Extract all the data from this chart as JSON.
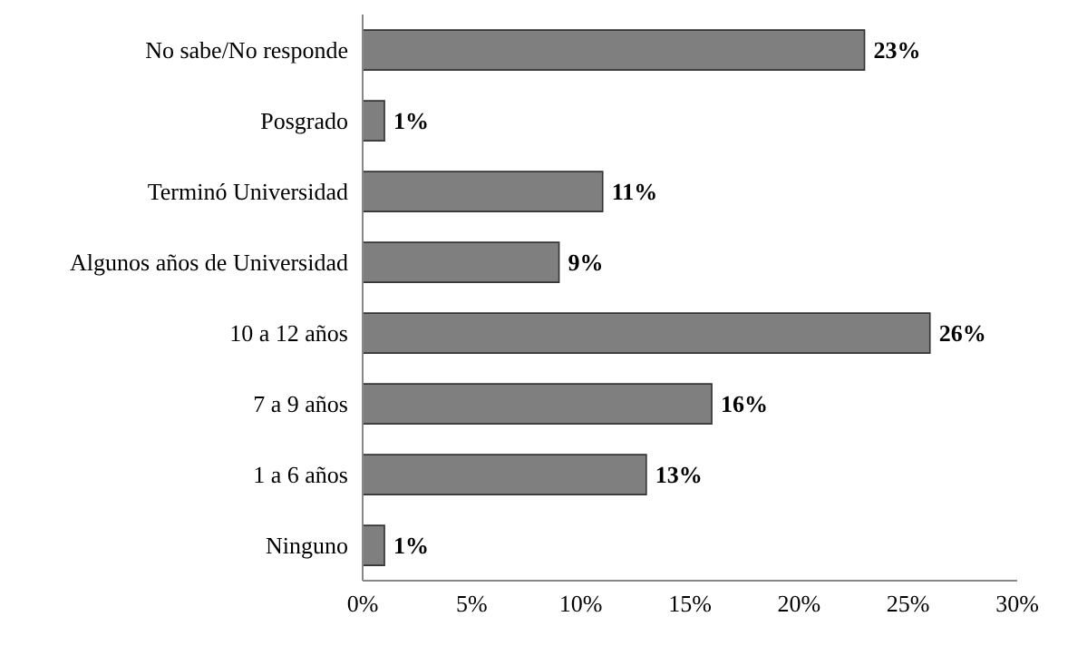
{
  "chart_data": {
    "type": "bar",
    "orientation": "horizontal",
    "categories": [
      "No sabe/No responde",
      "Posgrado",
      "Terminó Universidad",
      "Algunos años de Universidad",
      "10 a 12 años",
      "7 a 9 años",
      "1 a 6 años",
      "Ninguno"
    ],
    "values": [
      23,
      1,
      11,
      9,
      26,
      16,
      13,
      1
    ],
    "value_labels": [
      "23%",
      "1%",
      "11%",
      "9%",
      "26%",
      "16%",
      "13%",
      "1%"
    ],
    "color": "#7f7f7f",
    "xlim": [
      0,
      30
    ],
    "xticks": [
      {
        "value": 0,
        "label": "0%"
      },
      {
        "value": 5,
        "label": "5%"
      },
      {
        "value": 10,
        "label": "10%"
      },
      {
        "value": 15,
        "label": "15%"
      },
      {
        "value": 20,
        "label": "20%"
      },
      {
        "value": 25,
        "label": "25%"
      },
      {
        "value": 30,
        "label": "30%"
      }
    ],
    "grid": false,
    "legend": false
  }
}
